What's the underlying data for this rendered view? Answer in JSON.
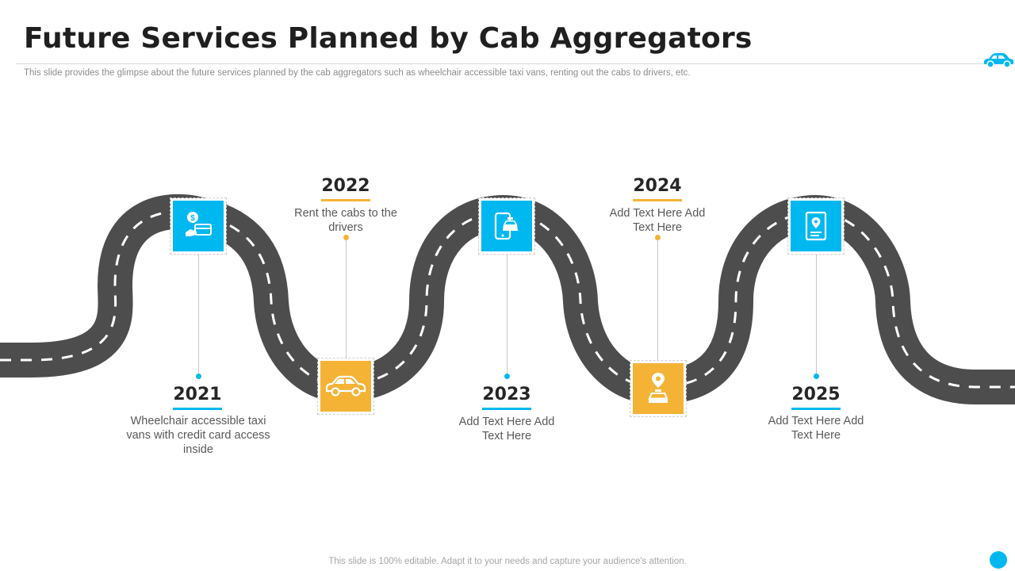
{
  "header": {
    "title": "Future Services Planned by Cab Aggregators",
    "subtitle": "This slide provides the glimpse about the future services planned by the cab aggregators such as wheelchair accessible taxi vans, renting out the cabs to drivers, etc."
  },
  "milestones": [
    {
      "year": "2021",
      "text": "Wheelchair accessible taxi vans with credit card access inside",
      "icon": "money-card-icon",
      "color": "blue"
    },
    {
      "year": "2022",
      "text": "Rent the cabs to the drivers",
      "icon": "car-icon",
      "color": "orange"
    },
    {
      "year": "2023",
      "text": "Add Text Here Add Text Here",
      "icon": "mobile-taxi-icon",
      "color": "blue"
    },
    {
      "year": "2024",
      "text": "Add Text Here Add Text Here",
      "icon": "location-taxi-icon",
      "color": "orange"
    },
    {
      "year": "2025",
      "text": "Add Text Here Add Text Here",
      "icon": "document-location-icon",
      "color": "blue"
    }
  ],
  "footer": {
    "text": "This slide is 100% editable. Adapt it to your needs and capture your audience's attention."
  },
  "colors": {
    "blue": "#00b8f0",
    "orange": "#f5b335",
    "road": "#4d4d4d",
    "title": "#1f1f1f"
  }
}
